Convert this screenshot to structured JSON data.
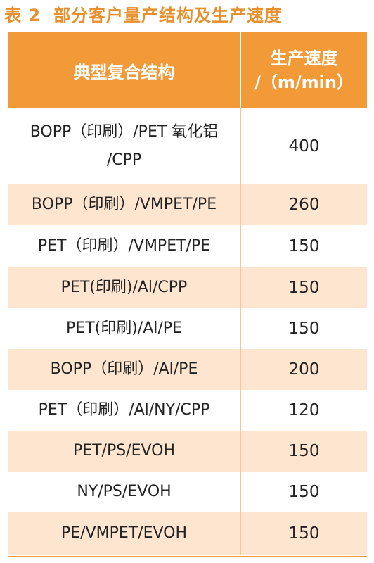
{
  "caption": {
    "number": "表 2",
    "title": "部分客户量产结构及生产速度"
  },
  "table": {
    "header": {
      "col1": "典型复合结构",
      "col2_line1": "生产速度",
      "col2_line2": "/（m/min）"
    },
    "rows": [
      {
        "structure": "BOPP（印刷）/PET 氧化铝 /CPP",
        "speed": "400"
      },
      {
        "structure": "BOPP（印刷）/VMPET/PE",
        "speed": "260"
      },
      {
        "structure": "PET（印刷）/VMPET/PE",
        "speed": "150"
      },
      {
        "structure": "PET(印刷)/Al/CPP",
        "speed": "150"
      },
      {
        "structure": "PET(印刷)/Al/PE",
        "speed": "150"
      },
      {
        "structure": "BOPP（印刷）/Al/PE",
        "speed": "200"
      },
      {
        "structure": "PET（印刷）/Al/NY/CPP",
        "speed": "120"
      },
      {
        "structure": "PET/PS/EVOH",
        "speed": "150"
      },
      {
        "structure": "NY/PS/EVOH",
        "speed": "150"
      },
      {
        "structure": "PE/VMPET/EVOH",
        "speed": "150"
      }
    ]
  },
  "colors": {
    "accent": "#f29a38",
    "caption": "#e8902e",
    "row_alt": "#fde5cf"
  }
}
